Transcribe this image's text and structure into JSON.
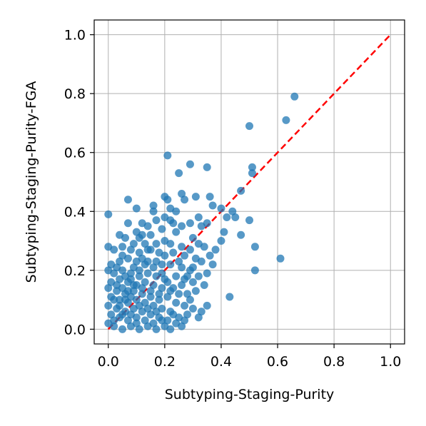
{
  "chart_data": {
    "type": "scatter",
    "xlabel": "Subtyping-Staging-Purity",
    "ylabel": "Subtyping-Staging-Purity-FGA",
    "xlim": [
      -0.05,
      1.05
    ],
    "ylim": [
      -0.05,
      1.05
    ],
    "xticks": [
      0.0,
      0.2,
      0.4,
      0.6,
      0.8,
      1.0
    ],
    "yticks": [
      0.0,
      0.2,
      0.4,
      0.6,
      0.8,
      1.0
    ],
    "tick_labels_x": [
      "0.0",
      "0.2",
      "0.4",
      "0.6",
      "0.8",
      "1.0"
    ],
    "tick_labels_y": [
      "0.0",
      "0.2",
      "0.4",
      "0.6",
      "0.8",
      "1.0"
    ],
    "grid": true,
    "legend": "none",
    "reference_line": {
      "x": [
        0.0,
        1.0
      ],
      "y": [
        0.0,
        1.0
      ],
      "style": "dashed",
      "color": "#ff0000"
    },
    "marker_color": "#1f77b4",
    "marker_alpha": 0.75,
    "points": [
      [
        0.66,
        0.79
      ],
      [
        0.63,
        0.71
      ],
      [
        0.5,
        0.69
      ],
      [
        0.21,
        0.59
      ],
      [
        0.29,
        0.56
      ],
      [
        0.35,
        0.55
      ],
      [
        0.25,
        0.53
      ],
      [
        0.51,
        0.53
      ],
      [
        0.51,
        0.55
      ],
      [
        0.47,
        0.47
      ],
      [
        0.26,
        0.46
      ],
      [
        0.2,
        0.45
      ],
      [
        0.21,
        0.44
      ],
      [
        0.27,
        0.44
      ],
      [
        0.31,
        0.45
      ],
      [
        0.36,
        0.45
      ],
      [
        0.37,
        0.42
      ],
      [
        0.07,
        0.44
      ],
      [
        0.1,
        0.41
      ],
      [
        0.0,
        0.39
      ],
      [
        0.16,
        0.42
      ],
      [
        0.16,
        0.4
      ],
      [
        0.22,
        0.41
      ],
      [
        0.24,
        0.4
      ],
      [
        0.4,
        0.41
      ],
      [
        0.42,
        0.38
      ],
      [
        0.44,
        0.4
      ],
      [
        0.45,
        0.38
      ],
      [
        0.5,
        0.37
      ],
      [
        0.47,
        0.32
      ],
      [
        0.41,
        0.33
      ],
      [
        0.4,
        0.3
      ],
      [
        0.52,
        0.28
      ],
      [
        0.52,
        0.2
      ],
      [
        0.61,
        0.24
      ],
      [
        0.43,
        0.11
      ],
      [
        0.12,
        0.36
      ],
      [
        0.14,
        0.35
      ],
      [
        0.17,
        0.37
      ],
      [
        0.2,
        0.38
      ],
      [
        0.22,
        0.37
      ],
      [
        0.23,
        0.36
      ],
      [
        0.26,
        0.35
      ],
      [
        0.29,
        0.36
      ],
      [
        0.32,
        0.38
      ],
      [
        0.33,
        0.35
      ],
      [
        0.35,
        0.36
      ],
      [
        0.07,
        0.36
      ],
      [
        0.04,
        0.32
      ],
      [
        0.1,
        0.33
      ],
      [
        0.12,
        0.32
      ],
      [
        0.15,
        0.32
      ],
      [
        0.19,
        0.34
      ],
      [
        0.24,
        0.33
      ],
      [
        0.3,
        0.31
      ],
      [
        0.32,
        0.29
      ],
      [
        0.34,
        0.28
      ],
      [
        0.38,
        0.27
      ],
      [
        0.36,
        0.25
      ],
      [
        0.29,
        0.27
      ],
      [
        0.26,
        0.28
      ],
      [
        0.22,
        0.29
      ],
      [
        0.2,
        0.3
      ],
      [
        0.17,
        0.29
      ],
      [
        0.13,
        0.29
      ],
      [
        0.0,
        0.28
      ],
      [
        0.02,
        0.27
      ],
      [
        0.05,
        0.28
      ],
      [
        0.08,
        0.27
      ],
      [
        0.11,
        0.26
      ],
      [
        0.15,
        0.27
      ],
      [
        0.18,
        0.26
      ],
      [
        0.2,
        0.25
      ],
      [
        0.23,
        0.26
      ],
      [
        0.27,
        0.25
      ],
      [
        0.31,
        0.24
      ],
      [
        0.33,
        0.23
      ],
      [
        0.37,
        0.22
      ],
      [
        0.35,
        0.19
      ],
      [
        0.32,
        0.18
      ],
      [
        0.29,
        0.2
      ],
      [
        0.26,
        0.21
      ],
      [
        0.22,
        0.22
      ],
      [
        0.19,
        0.22
      ],
      [
        0.16,
        0.21
      ],
      [
        0.13,
        0.22
      ],
      [
        0.1,
        0.23
      ],
      [
        0.07,
        0.24
      ],
      [
        0.04,
        0.23
      ],
      [
        0.01,
        0.22
      ],
      [
        0.0,
        0.2
      ],
      [
        0.02,
        0.19
      ],
      [
        0.05,
        0.2
      ],
      [
        0.08,
        0.19
      ],
      [
        0.11,
        0.18
      ],
      [
        0.14,
        0.19
      ],
      [
        0.17,
        0.18
      ],
      [
        0.2,
        0.17
      ],
      [
        0.24,
        0.18
      ],
      [
        0.27,
        0.17
      ],
      [
        0.3,
        0.16
      ],
      [
        0.34,
        0.15
      ],
      [
        0.31,
        0.13
      ],
      [
        0.28,
        0.12
      ],
      [
        0.25,
        0.12
      ],
      [
        0.22,
        0.13
      ],
      [
        0.19,
        0.14
      ],
      [
        0.16,
        0.15
      ],
      [
        0.13,
        0.16
      ],
      [
        0.1,
        0.15
      ],
      [
        0.07,
        0.16
      ],
      [
        0.04,
        0.17
      ],
      [
        0.01,
        0.16
      ],
      [
        0.0,
        0.14
      ],
      [
        0.03,
        0.13
      ],
      [
        0.06,
        0.12
      ],
      [
        0.09,
        0.13
      ],
      [
        0.12,
        0.12
      ],
      [
        0.15,
        0.11
      ],
      [
        0.18,
        0.1
      ],
      [
        0.21,
        0.11
      ],
      [
        0.24,
        0.09
      ],
      [
        0.27,
        0.08
      ],
      [
        0.3,
        0.07
      ],
      [
        0.33,
        0.06
      ],
      [
        0.35,
        0.08
      ],
      [
        0.32,
        0.04
      ],
      [
        0.28,
        0.05
      ],
      [
        0.25,
        0.04
      ],
      [
        0.22,
        0.06
      ],
      [
        0.19,
        0.07
      ],
      [
        0.16,
        0.08
      ],
      [
        0.13,
        0.09
      ],
      [
        0.1,
        0.1
      ],
      [
        0.07,
        0.09
      ],
      [
        0.04,
        0.1
      ],
      [
        0.01,
        0.11
      ],
      [
        0.0,
        0.08
      ],
      [
        0.03,
        0.07
      ],
      [
        0.06,
        0.06
      ],
      [
        0.09,
        0.07
      ],
      [
        0.12,
        0.06
      ],
      [
        0.15,
        0.05
      ],
      [
        0.18,
        0.04
      ],
      [
        0.21,
        0.03
      ],
      [
        0.24,
        0.02
      ],
      [
        0.2,
        0.01
      ],
      [
        0.16,
        0.02
      ],
      [
        0.13,
        0.03
      ],
      [
        0.1,
        0.04
      ],
      [
        0.07,
        0.03
      ],
      [
        0.04,
        0.04
      ],
      [
        0.01,
        0.05
      ],
      [
        0.0,
        0.02
      ],
      [
        0.02,
        0.01
      ],
      [
        0.05,
        0.0
      ],
      [
        0.08,
        0.01
      ],
      [
        0.11,
        0.0
      ],
      [
        0.14,
        0.01
      ],
      [
        0.17,
        0.0
      ],
      [
        0.22,
        0.0
      ],
      [
        0.26,
        0.01
      ],
      [
        0.03,
        0.15
      ],
      [
        0.05,
        0.14
      ],
      [
        0.06,
        0.18
      ],
      [
        0.08,
        0.17
      ],
      [
        0.09,
        0.21
      ],
      [
        0.11,
        0.2
      ],
      [
        0.12,
        0.24
      ],
      [
        0.14,
        0.23
      ],
      [
        0.02,
        0.1
      ],
      [
        0.04,
        0.08
      ],
      [
        0.06,
        0.1
      ],
      [
        0.08,
        0.11
      ],
      [
        0.05,
        0.25
      ],
      [
        0.03,
        0.21
      ],
      [
        0.09,
        0.29
      ],
      [
        0.11,
        0.31
      ],
      [
        0.06,
        0.31
      ],
      [
        0.14,
        0.27
      ],
      [
        0.17,
        0.23
      ],
      [
        0.19,
        0.19
      ],
      [
        0.21,
        0.16
      ],
      [
        0.23,
        0.14
      ],
      [
        0.26,
        0.15
      ],
      [
        0.28,
        0.18
      ],
      [
        0.3,
        0.21
      ],
      [
        0.25,
        0.23
      ],
      [
        0.18,
        0.12
      ],
      [
        0.15,
        0.13
      ],
      [
        0.12,
        0.14
      ],
      [
        0.09,
        0.15
      ],
      [
        0.07,
        0.13
      ],
      [
        0.05,
        0.05
      ],
      [
        0.08,
        0.05
      ],
      [
        0.11,
        0.08
      ],
      [
        0.14,
        0.07
      ],
      [
        0.17,
        0.06
      ],
      [
        0.02,
        0.03
      ],
      [
        0.1,
        0.02
      ],
      [
        0.19,
        0.03
      ],
      [
        0.23,
        0.05
      ],
      [
        0.27,
        0.03
      ],
      [
        0.29,
        0.1
      ]
    ]
  }
}
